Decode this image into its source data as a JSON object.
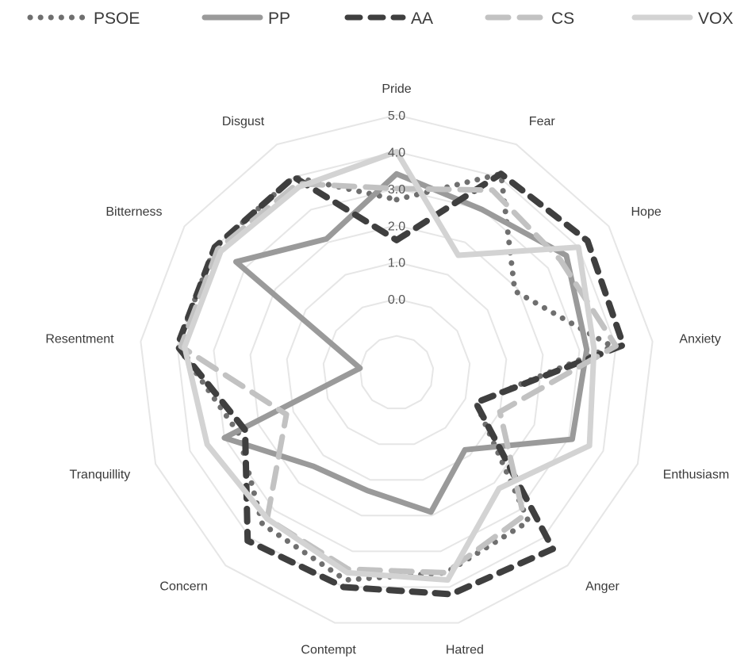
{
  "chart_data": {
    "type": "radar",
    "title": "",
    "categories": [
      "Pride",
      "Fear",
      "Hope",
      "Anxiety",
      "Enthusiasm",
      "Anger",
      "Hatred",
      "Contempt",
      "Concern",
      "Tranquillity",
      "Resentment",
      "Bitterness",
      "Disgust"
    ],
    "rlim": [
      -2.0,
      5.0
    ],
    "ticks": [
      0.0,
      1.0,
      2.0,
      3.0,
      4.0,
      5.0
    ],
    "tick_labels": [
      "0.0",
      "1.0",
      "2.0",
      "3.0",
      "4.0",
      "5.0"
    ],
    "grid": true,
    "legend_position": "top",
    "series": [
      {
        "name": "PSOE",
        "style": "dotted",
        "color": "#6f6f6f",
        "values": [
          2.7,
          4.1,
          1.9,
          3.9,
          0.3,
          3.4,
          3.6,
          3.8,
          3.5,
          2.6,
          4.0,
          4.0,
          4.0
        ]
      },
      {
        "name": "PP",
        "style": "solid",
        "color": "#9a9a9a",
        "values": [
          3.4,
          3.0,
          3.6,
          3.2,
          3.1,
          0.8,
          1.9,
          1.3,
          1.4,
          3.0,
          -1.0,
          3.3,
          2.1
        ]
      },
      {
        "name": "AA",
        "style": "dashed",
        "color": "#3f3f3f",
        "values": [
          1.6,
          4.1,
          4.3,
          4.2,
          0.3,
          4.4,
          4.2,
          4.0,
          4.1,
          2.4,
          4.0,
          4.0,
          4.0
        ]
      },
      {
        "name": "CS",
        "style": "long-dash",
        "color": "#c2c2c2",
        "values": [
          3.0,
          3.6,
          3.4,
          4.0,
          1.0,
          3.2,
          3.6,
          3.5,
          3.3,
          1.2,
          3.9,
          3.9,
          3.8
        ]
      },
      {
        "name": "VOX",
        "style": "solid",
        "color": "#d3d3d3",
        "values": [
          4.0,
          1.6,
          4.0,
          3.4,
          3.6,
          2.2,
          3.8,
          3.6,
          3.3,
          3.5,
          3.8,
          3.8,
          3.7
        ]
      }
    ]
  }
}
